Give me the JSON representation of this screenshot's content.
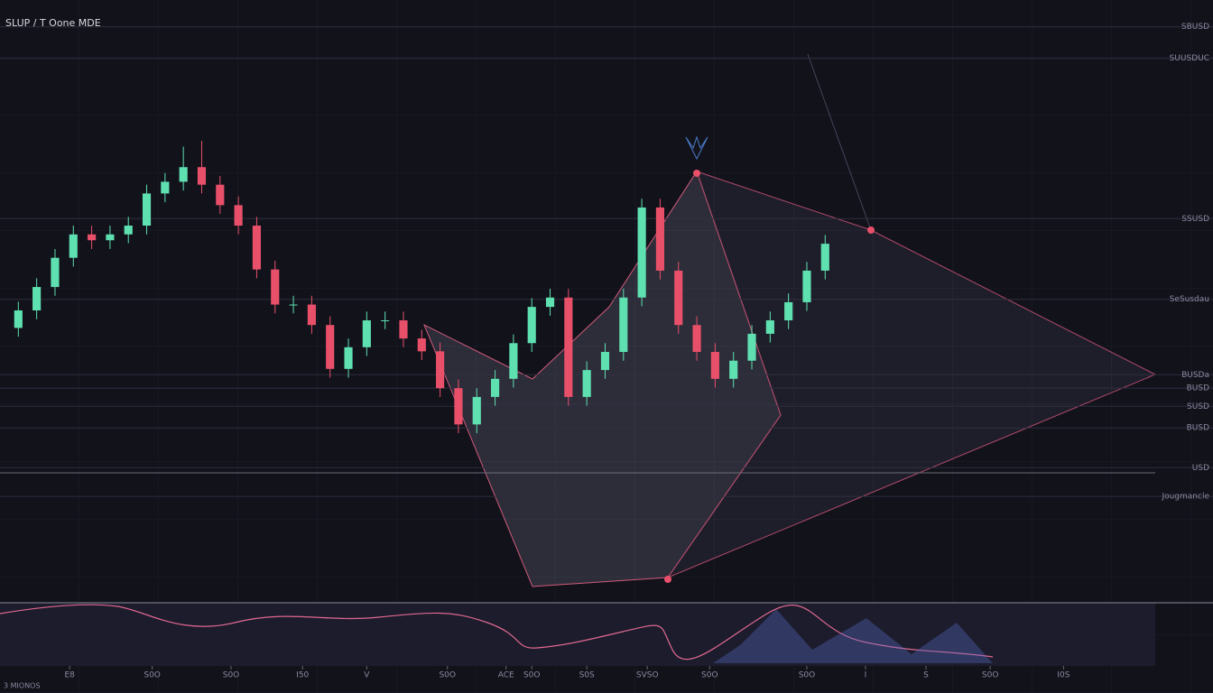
{
  "chart_data": {
    "type": "candlestick",
    "title": "SLUP / T Oone MDE",
    "footer_label": "3 MIONOS",
    "x": [
      1,
      2,
      3,
      4,
      5,
      6,
      7,
      8,
      9,
      10,
      11,
      12,
      13,
      14,
      15,
      16,
      17,
      18,
      19,
      20,
      21,
      22,
      23,
      24,
      25,
      26,
      27,
      28,
      29,
      30,
      31,
      32,
      33,
      34,
      35,
      36,
      37,
      38,
      39,
      40,
      41,
      42,
      43,
      44,
      45
    ],
    "open": [
      47,
      50,
      54,
      59,
      63,
      62,
      63,
      64.5,
      70,
      72,
      74.5,
      71.5,
      68,
      64.5,
      57,
      51,
      51,
      47.5,
      40,
      43.7,
      48.3,
      48.3,
      45.2,
      43,
      36.7,
      30.5,
      35.2,
      38.3,
      44.4,
      50.6,
      52.2,
      35.2,
      39.8,
      42.9,
      52.2,
      67.6,
      56.8,
      47.5,
      42.9,
      38.3,
      41.4,
      46,
      48.3,
      51.4,
      56.8
    ],
    "high": [
      51.5,
      55.5,
      60.5,
      64.5,
      64.5,
      64.5,
      66,
      71.5,
      73.5,
      78,
      79,
      73,
      69.5,
      66,
      58.5,
      52.5,
      52.5,
      49,
      45.2,
      49.8,
      49.8,
      49.8,
      46.7,
      44.5,
      38.2,
      36.7,
      39.8,
      45.9,
      52.1,
      53.7,
      53.7,
      41.3,
      44.4,
      53.7,
      69.1,
      69.1,
      58.3,
      49,
      44.4,
      42.9,
      47.5,
      49.8,
      52.9,
      58.3,
      62.9
    ],
    "low": [
      45.5,
      48.5,
      52.5,
      57.5,
      60.5,
      60.5,
      61.5,
      63,
      68.5,
      70.5,
      70,
      66.5,
      63,
      55.5,
      49.5,
      49.5,
      46,
      38.5,
      38.5,
      42.2,
      46.8,
      43.7,
      41.5,
      35.2,
      29,
      29,
      33.7,
      36.8,
      42.9,
      49.1,
      33.7,
      33.7,
      38.3,
      41.4,
      50.7,
      55.3,
      46,
      41.4,
      36.8,
      36.8,
      39.9,
      44.5,
      46.8,
      49.9,
      55.3
    ],
    "close": [
      50,
      54,
      59,
      63,
      62,
      63,
      64.5,
      70,
      72,
      74.5,
      71.5,
      68,
      64.5,
      57,
      51,
      51,
      47.5,
      40,
      43.7,
      48.3,
      48.3,
      45.2,
      43,
      36.7,
      30.5,
      35.2,
      38.3,
      44.4,
      50.6,
      52.2,
      35.2,
      39.8,
      42.9,
      52.2,
      67.6,
      56.8,
      47.5,
      42.9,
      38.3,
      41.4,
      46,
      48.3,
      51.4,
      56.8,
      61.4
    ],
    "up_color": "#5fe0b0",
    "down_color": "#e8506a",
    "xlim": [
      0,
      63
    ],
    "xticks": [
      {
        "value": 3.8,
        "label": "E8"
      },
      {
        "value": 8.3,
        "label": "S0O"
      },
      {
        "value": 12.6,
        "label": "S0O"
      },
      {
        "value": 16.5,
        "label": "I50"
      },
      {
        "value": 20,
        "label": "V"
      },
      {
        "value": 24.4,
        "label": "S0O"
      },
      {
        "value": 27.6,
        "label": "ACE"
      },
      {
        "value": 29,
        "label": "S0O"
      },
      {
        "value": 32,
        "label": "S0S"
      },
      {
        "value": 35.3,
        "label": "SVSO"
      },
      {
        "value": 38.7,
        "label": "S0O"
      },
      {
        "value": 44,
        "label": "S0O"
      },
      {
        "value": 47.2,
        "label": "I"
      },
      {
        "value": 50.5,
        "label": "S"
      },
      {
        "value": 54,
        "label": "S0O"
      },
      {
        "value": 58,
        "label": "I0S"
      }
    ],
    "ylim": [
      0,
      100
    ],
    "yticks": [
      {
        "value": 98.5,
        "label": "SBUSD"
      },
      {
        "value": 93.1,
        "label": "SUUSDUC"
      },
      {
        "value": 65.7,
        "label": "SSUSD"
      },
      {
        "value": 51.9,
        "label": "SeSusdau"
      },
      {
        "value": 39,
        "label": "BUSDa"
      },
      {
        "value": 36.7,
        "label": "BUSD"
      },
      {
        "value": 33.6,
        "label": "SUSD"
      },
      {
        "value": 29.9,
        "label": "BUSD"
      },
      {
        "value": 23.1,
        "label": "USD"
      },
      {
        "value": 18.2,
        "label": "Jougmancle"
      }
    ],
    "grid": true
  }
}
